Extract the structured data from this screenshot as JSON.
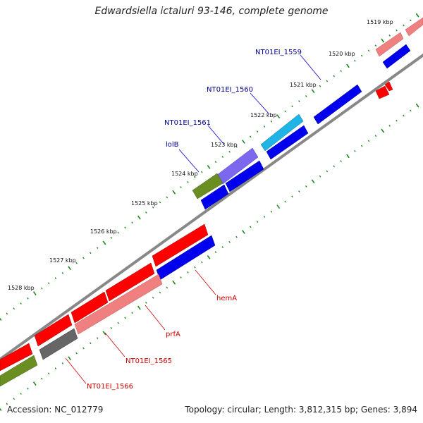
{
  "title": "Edwardsiella ictaluri 93-146, complete genome",
  "footer": {
    "accession": "Accession: NC_012779",
    "stats": "Topology: circular; Length: 3,812,315 bp; Genes: 3,894"
  },
  "ticks": [
    "1519 kbp",
    "1520 kbp",
    "1521 kbp",
    "1522 kbp",
    "1523 kbp",
    "1524 kbp",
    "1525 kbp",
    "1526 kbp",
    "1527 kbp",
    "1528 kbp"
  ],
  "labels": {
    "blue": [
      "NT01EI_1559",
      "NT01EI_1560",
      "NT01EI_1561",
      "lolB"
    ],
    "red": [
      "hemA",
      "prfA",
      "NT01EI_1565",
      "NT01EI_1566"
    ]
  },
  "colors": {
    "forward_cds": "#ff0000",
    "forward_cds_light": "#f08080",
    "reverse_cds": "#0000ee",
    "olive": "#6b8e23",
    "purple": "#7b68ee",
    "cyan": "#1eb4e6",
    "grey": "#666666",
    "backbone": "#888888",
    "ticks": "#1a8a1a",
    "blue_label": "#00008b",
    "red_label": "#cc0000"
  }
}
